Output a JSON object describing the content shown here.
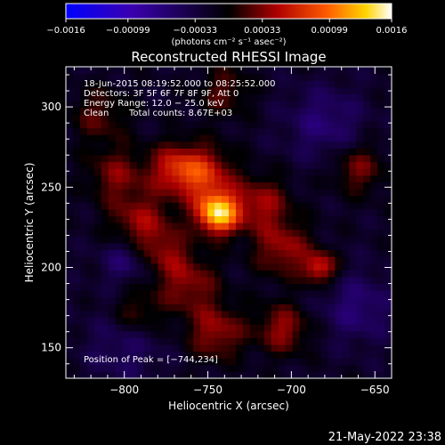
{
  "chart_data": {
    "type": "heatmap",
    "title": "Reconstructed RHESSI Image",
    "xlabel": "Heliocentric X (arcsec)",
    "ylabel": "Heliocentric Y (arcsec)",
    "xlim": [
      -835,
      -640
    ],
    "ylim": [
      131,
      325
    ],
    "x_ticks": [
      -800,
      -750,
      -700,
      -650
    ],
    "x_tick_labels": [
      "−800",
      "−750",
      "−700",
      "−650"
    ],
    "y_ticks": [
      150,
      200,
      250,
      300
    ],
    "y_tick_labels": [
      "150",
      "200",
      "250",
      "300"
    ],
    "colorbar": {
      "range": [
        -0.0016,
        0.0016
      ],
      "tick_labels": [
        "−0.0016",
        "−0.00099",
        "−0.00033",
        "0.00033",
        "0.00099",
        "0.0016"
      ],
      "units": "(photons cm⁻² s⁻¹ asec⁻²)"
    },
    "annotations": [
      "18-Jun-2015 08:19:52.000 to 08:25:52.000",
      "Detectors: 3F 5F 6F 7F 8F 9F, Att 0",
      "Energy Range: 12.0 − 25.0 keV",
      "Clean",
      "Total counts: 8.67E+03",
      "Position of Peak = [−744,234]"
    ],
    "peak": {
      "x": -744,
      "y": 234
    },
    "sources": [
      {
        "x": -744,
        "y": 234,
        "amplitude": 0.00155,
        "sigma": 9
      },
      {
        "x": -752,
        "y": 258,
        "amplitude": 0.0008,
        "sigma": 12
      },
      {
        "x": -770,
        "y": 262,
        "amplitude": 0.0007,
        "sigma": 11
      },
      {
        "x": -790,
        "y": 228,
        "amplitude": 0.0006,
        "sigma": 13
      },
      {
        "x": -805,
        "y": 258,
        "amplitude": 0.0005,
        "sigma": 12
      },
      {
        "x": -718,
        "y": 240,
        "amplitude": 0.0006,
        "sigma": 12
      },
      {
        "x": -705,
        "y": 212,
        "amplitude": 0.0006,
        "sigma": 12
      },
      {
        "x": -683,
        "y": 200,
        "amplitude": 0.0008,
        "sigma": 7
      },
      {
        "x": -762,
        "y": 190,
        "amplitude": 0.00055,
        "sigma": 13
      },
      {
        "x": -745,
        "y": 160,
        "amplitude": 0.0006,
        "sigma": 12
      },
      {
        "x": -705,
        "y": 162,
        "amplitude": 0.0006,
        "sigma": 11
      },
      {
        "x": -792,
        "y": 172,
        "amplitude": 0.0004,
        "sigma": 10
      },
      {
        "x": -660,
        "y": 262,
        "amplitude": 0.0005,
        "sigma": 11
      },
      {
        "x": -740,
        "y": 310,
        "amplitude": 0.0004,
        "sigma": 11
      },
      {
        "x": -775,
        "y": 210,
        "amplitude": 0.0004,
        "sigma": 10
      },
      {
        "x": -815,
        "y": 295,
        "amplitude": 0.0004,
        "sigma": 12
      },
      {
        "x": -680,
        "y": 290,
        "amplitude": -0.0004,
        "sigma": 16
      },
      {
        "x": -800,
        "y": 150,
        "amplitude": -0.0003,
        "sigma": 16
      },
      {
        "x": -660,
        "y": 175,
        "amplitude": -0.0004,
        "sigma": 15
      },
      {
        "x": -800,
        "y": 205,
        "amplitude": -0.0004,
        "sigma": 10
      }
    ]
  },
  "footer": {
    "timestamp": "21-May-2022 23:38"
  }
}
